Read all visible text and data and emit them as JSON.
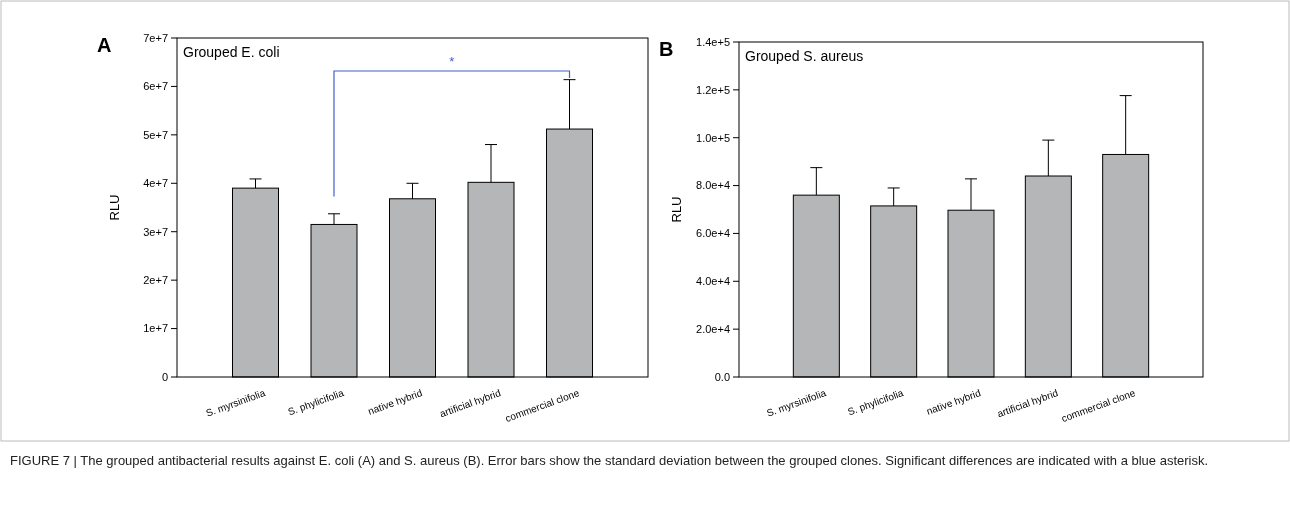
{
  "chart_data": [
    {
      "type": "bar",
      "title": "A",
      "subtitle": "Grouped E. coli",
      "ylabel": "RLU",
      "categories": [
        "S. myrsinifolia",
        "S. phylicifolia",
        "native hybrid",
        "artificial hybrid",
        "commercial clone"
      ],
      "values": [
        39000000.0,
        31500000.0,
        36800000.0,
        40200000.0,
        51200000.0
      ],
      "errors": [
        1900000.0,
        2200000.0,
        3200000.0,
        7800000.0,
        10200000.0
      ],
      "color": "#b4b6b7",
      "ylim": [
        0,
        70000000.0
      ],
      "yticks": [
        {
          "value": 0,
          "label": "0"
        },
        {
          "value": 10000000.0,
          "label": "1e+7"
        },
        {
          "value": 20000000.0,
          "label": "2e+7"
        },
        {
          "value": 30000000.0,
          "label": "3e+7"
        },
        {
          "value": 40000000.0,
          "label": "4e+7"
        },
        {
          "value": 50000000.0,
          "label": "5e+7"
        },
        {
          "value": 60000000.0,
          "label": "6e+7"
        },
        {
          "value": 70000000.0,
          "label": "7e+7"
        }
      ],
      "annotations": [
        "*",
        "FIGURE 7 | The grouped antibacterial results against E. coli (A) and S. aureus (B). Error bars show the standard deviation between the grouped clones. Significant differences are indicated with a blue asterisk."
      ]
    },
    {
      "type": "bar",
      "title": "B",
      "subtitle": "Grouped S. aureus",
      "ylabel": "RLU",
      "categories": [
        "S. myrsinifolia",
        "S. phylicifolia",
        "native hybrid",
        "artificial hybrid",
        "commercial clone"
      ],
      "values": [
        76000.0,
        71500.0,
        69700.0,
        84000.0,
        93000.0
      ],
      "errors": [
        11500.0,
        7500.0,
        13100.0,
        15000.0,
        24600.0
      ],
      "color": "#b4b6b7",
      "ylim": [
        0,
        140000.0
      ],
      "yticks": [
        {
          "value": 0,
          "label": "0.0"
        },
        {
          "value": 20000.0,
          "label": "2.0e+4"
        },
        {
          "value": 40000.0,
          "label": "4.0e+4"
        },
        {
          "value": 60000.0,
          "label": "6.0e+4"
        },
        {
          "value": 80000.0,
          "label": "8.0e+4"
        },
        {
          "value": 100000.0,
          "label": "1.0e+5"
        },
        {
          "value": 120000.0,
          "label": "1.2e+5"
        },
        {
          "value": 140000.0,
          "label": "1.4e+5"
        }
      ]
    }
  ]
}
